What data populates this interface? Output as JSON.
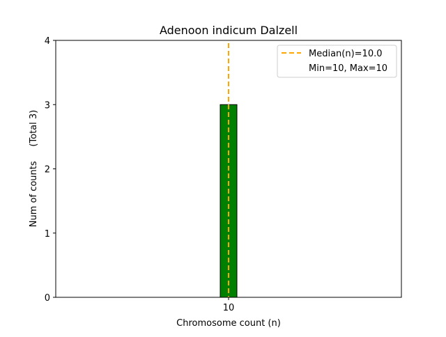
{
  "chart_data": {
    "type": "bar",
    "title": "Adenoon indicum Dalzell",
    "xlabel": "Chromosome count (n)",
    "ylabel": "Num of counts     (Total 3)",
    "categories": [
      "10"
    ],
    "values": [
      3
    ],
    "bar_color": "#008000",
    "bar_edge_color": "#000000",
    "ylim": [
      0,
      4
    ],
    "yticks": [
      "0",
      "1",
      "2",
      "3",
      "4"
    ],
    "xticks": [
      "10"
    ],
    "grid": false,
    "median": 10.0,
    "median_color": "#FFA500",
    "legend": {
      "placement": "top-right",
      "entries": [
        "Median(n)=10.0",
        "Min=10, Max=10"
      ]
    }
  }
}
